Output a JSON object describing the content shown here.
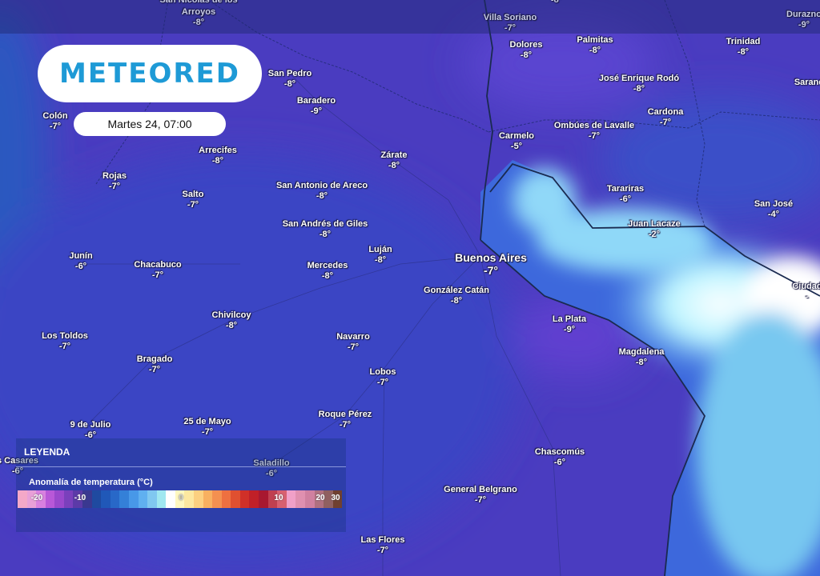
{
  "brand": {
    "logo_text": "METEORED",
    "date_label": "Martes 24, 07:00"
  },
  "legend": {
    "title": "LEYENDA",
    "subtitle": "Anomalía de temperatura (°C)",
    "ticks": [
      "-20",
      "-10",
      "0",
      "10",
      "20",
      "30"
    ],
    "colors": [
      "#f4a8c8",
      "#e8a0d8",
      "#d880e0",
      "#b858d8",
      "#9a48cc",
      "#7a40bc",
      "#5c3aa8",
      "#3a3890",
      "#1f4aa0",
      "#2058b8",
      "#2868c8",
      "#3480d8",
      "#4898e8",
      "#60b0f0",
      "#80c8f0",
      "#a0e8f0",
      "#ffffff",
      "#fff8c0",
      "#fde8a0",
      "#fcd080",
      "#f8b060",
      "#f49050",
      "#ee7040",
      "#e05030",
      "#d03028",
      "#c02028",
      "#a81830",
      "#c04050",
      "#d86070",
      "#f0a0c8",
      "#e090b0",
      "#d080a0",
      "#b07080",
      "#906060",
      "#704030"
    ]
  },
  "map_colors": {
    "land": "#4638b8",
    "water_cold": "#3a5fd8",
    "water_warm": "#e8ffff"
  },
  "cities": [
    {
      "name": "San Nicolás de los",
      "temp": ""
    },
    {
      "name": "Arroyos",
      "temp": "-8°"
    },
    {
      "name": "",
      "temp": "-8°"
    },
    {
      "name": "Villa Soriano",
      "temp": "-7°"
    },
    {
      "name": "Durazno",
      "temp": "-9°"
    },
    {
      "name": "Dolores",
      "temp": "-8°"
    },
    {
      "name": "Palmitas",
      "temp": "-8°"
    },
    {
      "name": "Trinidad",
      "temp": "-8°"
    },
    {
      "name": "Sarandí",
      "temp": ""
    },
    {
      "name": "José Enrique Rodó",
      "temp": "-8°"
    },
    {
      "name": "San Pedro",
      "temp": "-8°"
    },
    {
      "name": "Baradero",
      "temp": "-9°"
    },
    {
      "name": "Colón",
      "temp": "-7°"
    },
    {
      "name": "Cardona",
      "temp": "-7°"
    },
    {
      "name": "Ombúes de Lavalle",
      "temp": "-7°"
    },
    {
      "name": "Carmelo",
      "temp": "-5°"
    },
    {
      "name": "Arrecifes",
      "temp": "-8°"
    },
    {
      "name": "Zárate",
      "temp": "-8°"
    },
    {
      "name": "Rojas",
      "temp": "-7°"
    },
    {
      "name": "San Antonio de Areco",
      "temp": "-8°"
    },
    {
      "name": "Tarariras",
      "temp": "-6°"
    },
    {
      "name": "Salto",
      "temp": "-7°"
    },
    {
      "name": "San José",
      "temp": "-4°"
    },
    {
      "name": "San Andrés de Giles",
      "temp": "-8°"
    },
    {
      "name": "Juan Lacaze",
      "temp": "-2°"
    },
    {
      "name": "Luján",
      "temp": "-8°"
    },
    {
      "name": "Junín",
      "temp": "-6°"
    },
    {
      "name": "Buenos Aires",
      "temp": "-7°"
    },
    {
      "name": "Chacabuco",
      "temp": "-7°"
    },
    {
      "name": "Mercedes",
      "temp": "-8°"
    },
    {
      "name": "Ciudad",
      "temp": "-"
    },
    {
      "name": "González Catán",
      "temp": "-8°"
    },
    {
      "name": "Chivilcoy",
      "temp": "-8°"
    },
    {
      "name": "La Plata",
      "temp": "-9°"
    },
    {
      "name": "Los Toldos",
      "temp": "-7°"
    },
    {
      "name": "Navarro",
      "temp": "-7°"
    },
    {
      "name": "Magdalena",
      "temp": "-8°"
    },
    {
      "name": "Bragado",
      "temp": "-7°"
    },
    {
      "name": "Lobos",
      "temp": "-7°"
    },
    {
      "name": "Roque Pérez",
      "temp": "-7°"
    },
    {
      "name": "9 de Julio",
      "temp": "-6°"
    },
    {
      "name": "25 de Mayo",
      "temp": "-7°"
    },
    {
      "name": "Chascomús",
      "temp": "-6°"
    },
    {
      "name": "s Casares",
      "temp": "-6°"
    },
    {
      "name": "Saladillo",
      "temp": "-6°"
    },
    {
      "name": "General Belgrano",
      "temp": "-7°"
    },
    {
      "name": "Las Flores",
      "temp": "-7°"
    }
  ]
}
